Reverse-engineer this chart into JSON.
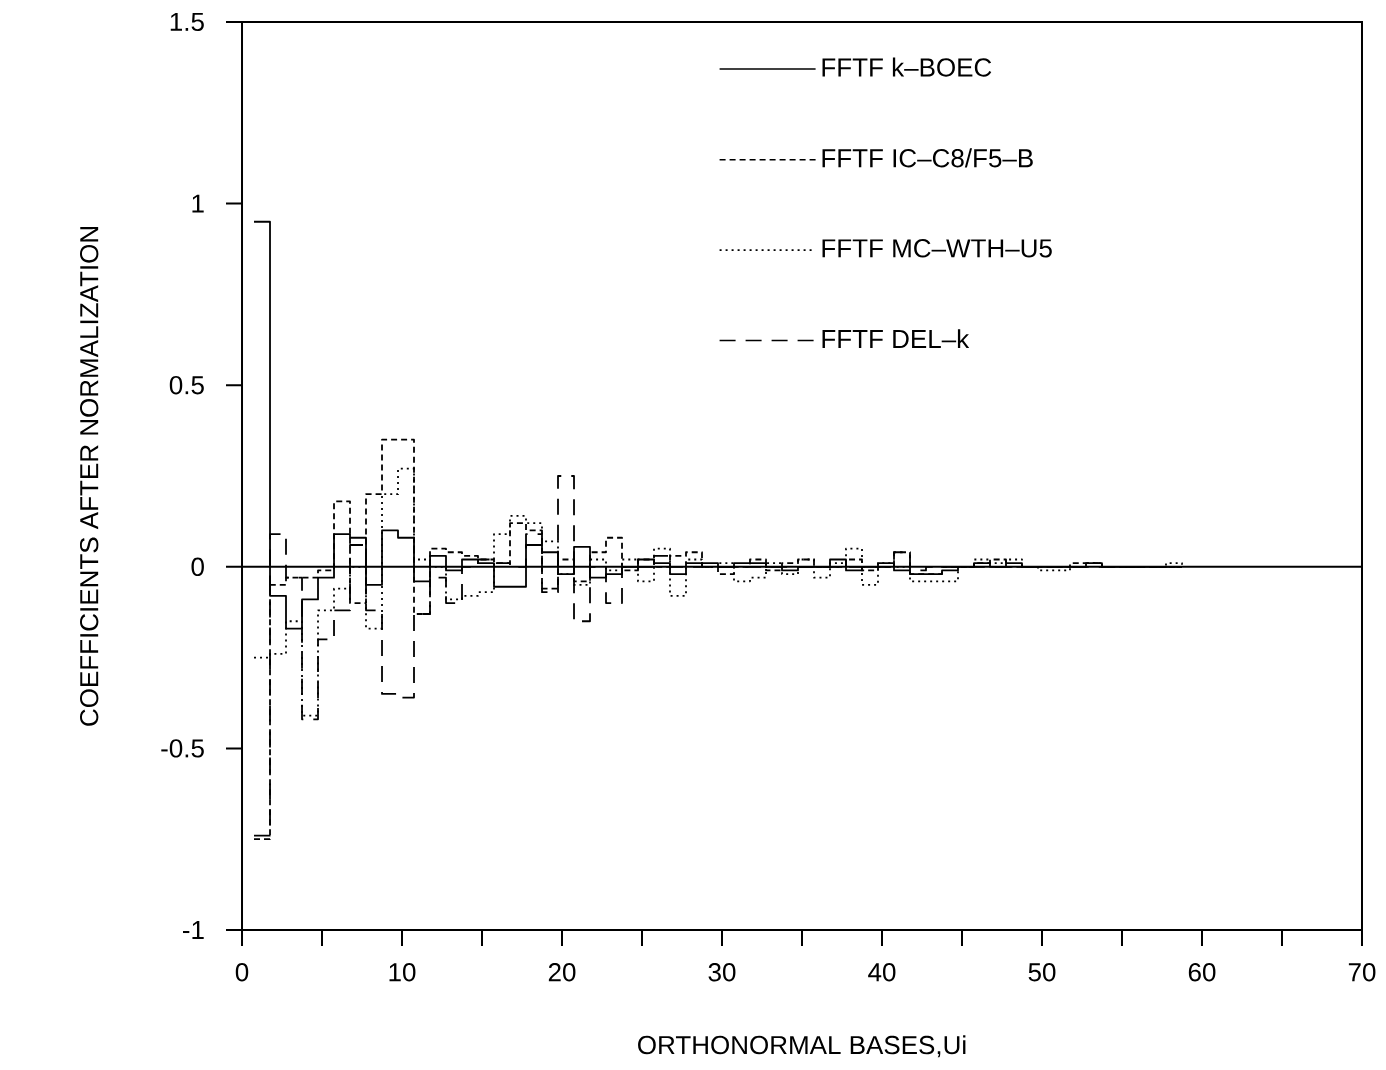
{
  "chart_data": {
    "type": "step",
    "xlabel": "ORTHONORMAL BASES,Ui",
    "ylabel": "COEFFICIENTS AFTER NORMALIZATION",
    "x": [
      0.75,
      1.75,
      2.75,
      3.75,
      4.75,
      5.75,
      6.75,
      7.75,
      8.75,
      9.75,
      10.75,
      11.75,
      12.75,
      13.75,
      14.75,
      15.75,
      16.75,
      17.75,
      18.75,
      19.75,
      20.75,
      21.75,
      22.75,
      23.75,
      24.75,
      25.75,
      26.75,
      27.75,
      28.75,
      29.75,
      30.75,
      31.75,
      32.75,
      33.75,
      34.75,
      35.75,
      36.75,
      37.75,
      38.75,
      39.75,
      40.75,
      41.75,
      42.75,
      43.75,
      44.75,
      45.75,
      46.75,
      47.75,
      48.75,
      49.75,
      50.75,
      51.75,
      52.75,
      53.75,
      54.75,
      55.75,
      56.75,
      57.75,
      58.75
    ],
    "series": [
      {
        "name": "FFTF  k–BOEC",
        "color": "#000000",
        "line_style": "solid",
        "values": [
          0.95,
          -0.08,
          -0.17,
          -0.09,
          -0.03,
          0.09,
          0.08,
          -0.05,
          0.1,
          0.08,
          -0.04,
          0.03,
          -0.01,
          0.02,
          0.01,
          -0.055,
          -0.055,
          0.06,
          0.04,
          -0.02,
          0.055,
          -0.03,
          -0.02,
          0.0,
          0.02,
          0.01,
          -0.02,
          0.01,
          0.01,
          0.0,
          0.01,
          0.01,
          0.0,
          -0.01,
          0.0,
          0.0,
          0.02,
          -0.01,
          0.0,
          0.01,
          -0.01,
          -0.02,
          -0.02,
          -0.01,
          0.0,
          0.01,
          0.0,
          0.01,
          0.0,
          0.0,
          0.0,
          0.0,
          0.01,
          0.0,
          0.0,
          0.0,
          0.0,
          0.0,
          0.0
        ]
      },
      {
        "name": "FFTF IC–C8/F5–B",
        "color": "#000000",
        "line_style": "dashed",
        "values": [
          -0.75,
          -0.05,
          -0.03,
          -0.03,
          -0.01,
          0.18,
          -0.1,
          0.2,
          0.35,
          0.35,
          -0.13,
          0.05,
          0.04,
          0.03,
          0.02,
          0.01,
          0.12,
          0.1,
          -0.06,
          0.02,
          -0.04,
          0.04,
          0.08,
          -0.01,
          0.02,
          0.0,
          0.03,
          0.04,
          0.0,
          -0.02,
          0.0,
          0.02,
          -0.01,
          0.01,
          0.02,
          0.0,
          0.0,
          0.02,
          -0.01,
          0.0,
          0.04,
          -0.02,
          -0.02,
          0.0,
          0.0,
          0.01,
          0.02,
          0.0,
          0.0,
          0.0,
          0.0,
          0.01,
          0.01,
          0.0,
          0.0,
          0.0,
          0.0,
          0.0,
          0.0
        ]
      },
      {
        "name": "FFTF MC–WTH–U5",
        "color": "#000000",
        "line_style": "dotted",
        "values": [
          -0.25,
          -0.24,
          -0.15,
          -0.41,
          -0.12,
          -0.06,
          0.0,
          -0.17,
          0.2,
          0.27,
          0.02,
          0.0,
          -0.09,
          -0.08,
          -0.07,
          0.09,
          0.14,
          0.12,
          0.07,
          -0.02,
          -0.05,
          0.02,
          -0.01,
          0.02,
          -0.04,
          0.05,
          -0.08,
          0.02,
          0.0,
          0.01,
          -0.04,
          -0.03,
          0.01,
          -0.02,
          0.02,
          -0.03,
          0.01,
          0.05,
          -0.05,
          0.01,
          0.0,
          -0.04,
          -0.04,
          -0.04,
          0.0,
          0.02,
          0.01,
          0.02,
          0.0,
          -0.01,
          -0.01,
          0.0,
          0.01,
          0.0,
          0.0,
          0.0,
          0.0,
          0.01,
          0.0
        ]
      },
      {
        "name": "FFTF DEL–k",
        "color": "#000000",
        "line_style": "dashed",
        "values": [
          -0.74,
          0.09,
          -0.03,
          -0.42,
          -0.2,
          -0.12,
          0.06,
          -0.12,
          -0.35,
          -0.36,
          -0.13,
          -0.03,
          -0.1,
          0.0,
          0.02,
          0.01,
          0.0,
          0.09,
          -0.07,
          0.25,
          -0.15,
          0.0,
          -0.1,
          0.0,
          0.0,
          0.03,
          0.0,
          0.0,
          0.0,
          0.0,
          0.0,
          0.0,
          0.0,
          0.0,
          0.0,
          0.0,
          0.0,
          0.0,
          0.0,
          0.0,
          0.04,
          -0.01,
          0.0,
          0.0,
          0.0,
          0.0,
          0.0,
          0.0,
          0.0,
          0.0,
          0.0,
          0.0,
          0.0,
          0.0,
          0.0,
          0.0,
          0.0,
          0.0,
          0.0
        ]
      }
    ],
    "xlim": [
      0,
      70
    ],
    "ylim": [
      -1,
      1.5
    ],
    "xticks": [
      0,
      {
        "value": 5,
        "label": null
      },
      10,
      {
        "value": 15,
        "label": null
      },
      20,
      {
        "value": 25,
        "label": null
      },
      30,
      {
        "value": 35,
        "label": null
      },
      40,
      {
        "value": 45,
        "label": null
      },
      50,
      {
        "value": 55,
        "label": null
      },
      60,
      {
        "value": 65,
        "label": null
      },
      70
    ],
    "yticks": [
      -1,
      -0.5,
      0,
      0.5,
      1,
      1.5
    ],
    "ref_lines": [
      {
        "axis": "y",
        "value": 0
      }
    ],
    "legend": "top right",
    "grid": false,
    "marker": "none"
  }
}
